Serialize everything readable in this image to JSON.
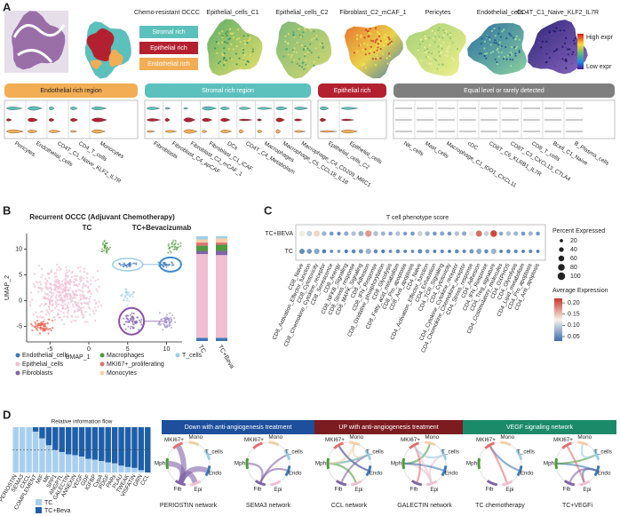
{
  "panel_a": {
    "letter": "A",
    "map_titles": [
      "Chemo-resistant OCCC",
      "Epithelial_cells_C1",
      "Epithelial_cells_C2",
      "Fibroblast_C2_mCAF_1",
      "Pericytes",
      "Endothelial_cells",
      "CD4T_C1_Naive_KLF2_IL7R"
    ],
    "region_legend": [
      {
        "label": "Stromal rich",
        "color": "#5cc0bd"
      },
      {
        "label": "Epithelial rich",
        "color": "#b3202f"
      },
      {
        "label": "Endothelial rich",
        "color": "#f2ad55"
      }
    ],
    "expr_legend": {
      "high": "High expr",
      "low": "Low expr"
    },
    "groups": [
      {
        "label": "Endothelial rich region",
        "color": "#f2ad55",
        "cells": [
          "Pericytes",
          "Endothelial_cells",
          "CD4T_C1_Naive_KLF2_IL7R",
          "CD4_T_cells",
          "Monocytes"
        ]
      },
      {
        "label": "Stromal rich region",
        "color": "#5cc0bd",
        "cells": [
          "Fibroblasts",
          "Fibroblast_C4_apCAF",
          "Fibroblast_C2_mCAF_1",
          "Fibroblast_C1_iCAF",
          "DCs",
          "CD4T_C4_Metabolism",
          "Macrophages",
          "Macrophage_C5_CCL18_IL18",
          "Macrophage_C4_CD209_MRC1"
        ]
      },
      {
        "label": "Epithelial rich",
        "color": "#b3202f",
        "cells": [
          "Epithelial_cells_C2",
          "Epithelial_cells"
        ]
      },
      {
        "label": "Equal level or rarely detected",
        "color": "#7f7f7f",
        "cells": [
          "NK_cells",
          "Mast_cells",
          "Macrophage_C1_IDO1_CXCL11",
          "cDC",
          "CD8T_C6_KLRB1_IL7R",
          "CD8T_C3_CXCL13_CTLA4",
          "CD8_T_cells",
          "Bcell_C1_Naive",
          "B_Plasma_cells"
        ]
      }
    ]
  },
  "panel_b": {
    "letter": "B",
    "title": "Recurrent OCCC (Adjuvant Chemotherapy)",
    "conditions": [
      "TC",
      "TC+Bevacizumab"
    ],
    "x_label": "UMAP_1",
    "y_label": "UMAP_2",
    "xlim": [
      -8,
      12
    ],
    "ylim": [
      -8,
      13
    ],
    "xticks": [
      -5,
      0,
      5,
      10
    ],
    "yticks": [
      -5,
      0,
      5,
      10
    ],
    "bar_labels": [
      "TC",
      "TC+Beva"
    ],
    "cell_types": [
      {
        "name": "Endothelial_cells",
        "color": "#3d78b8",
        "share": [
          3,
          3
        ]
      },
      {
        "name": "Epithelial_cells",
        "color": "#f0bfd2",
        "share": [
          80,
          79
        ]
      },
      {
        "name": "Fibroblasts",
        "color": "#8064a8",
        "share": [
          3,
          4
        ]
      },
      {
        "name": "Macrophages",
        "color": "#4e9a3c",
        "share": [
          5,
          6
        ]
      },
      {
        "name": "MKI67+_proliferating",
        "color": "#e07070",
        "share": [
          3,
          2
        ]
      },
      {
        "name": "Monocytes",
        "color": "#f5cfa8",
        "share": [
          3,
          4
        ]
      },
      {
        "name": "T_cells",
        "color": "#9ccfe6",
        "share": [
          3,
          2
        ]
      }
    ]
  },
  "panel_c": {
    "letter": "C",
    "title": "T cell phenotype score",
    "columns": [
      "CD8_Naive",
      "CD8_Activation_Effector_function",
      "CD8_Cytotoxicity",
      "CD8_Chemokine_Cytokine_receptor",
      "CD8_Senescence",
      "CD8_Anergy",
      "CD8_NFKB_Signaling",
      "CD8_Stress_response",
      "CD8_MAPK_Signaling",
      "CD8_Adhesion",
      "CD8_IFN_Response",
      "CD8_Oxidative_phosphorylation",
      "CD8_Glycolysis",
      "CD8_Fatty_acid_metabolism",
      "CD8_Pro_apoptosis",
      "CD8_Anti_apoptosis",
      "CD4_Naive",
      "CD4_Activation_Effector_function",
      "CD4_Exhaustion",
      "CD4_TCR_Signaling",
      "CD4_Cytotoxicity",
      "CD4_Cytokine_Cytokine_receptor",
      "CD4_Chemokine_Chemokine_receptor",
      "CD4_Stress_response",
      "CD4_Adhesion",
      "CD4_IFN_Response",
      "CD4_Treg_signature",
      "CD4_Costimulatory_molecules",
      "CD4_OXPHOS",
      "CD4_Glycolysis",
      "CD4_Lipid_metabolism",
      "CD4_Pro_apoptosis",
      "CD4_Anti_apoptosis"
    ],
    "rows": [
      {
        "label": "TC+BEVA",
        "percent": [
          60,
          55,
          70,
          40,
          30,
          25,
          35,
          40,
          50,
          75,
          45,
          35,
          30,
          40,
          25,
          30,
          45,
          40,
          30,
          35,
          30,
          40,
          35,
          50,
          70,
          45,
          80,
          30,
          40,
          35,
          30,
          35,
          30
        ],
        "average": [
          0.12,
          0.1,
          0.14,
          0.08,
          0.06,
          0.05,
          0.07,
          0.09,
          0.08,
          0.17,
          0.09,
          0.08,
          0.07,
          0.09,
          0.06,
          0.06,
          0.1,
          0.08,
          0.06,
          0.07,
          0.06,
          0.09,
          0.07,
          0.12,
          0.19,
          0.1,
          0.21,
          0.07,
          0.09,
          0.08,
          0.06,
          0.08,
          0.06
        ]
      },
      {
        "label": "TC",
        "percent": [
          50,
          45,
          55,
          30,
          20,
          20,
          25,
          30,
          35,
          55,
          30,
          25,
          20,
          30,
          20,
          20,
          35,
          30,
          20,
          25,
          20,
          30,
          25,
          35,
          50,
          30,
          55,
          20,
          30,
          25,
          20,
          25,
          20
        ],
        "average": [
          0.05,
          0.06,
          0.07,
          0.04,
          0.05,
          0.06,
          0.04,
          0.05,
          0.06,
          0.08,
          0.05,
          0.04,
          0.05,
          0.05,
          0.04,
          0.05,
          0.05,
          0.06,
          0.04,
          0.05,
          0.04,
          0.05,
          0.05,
          0.06,
          0.07,
          0.05,
          0.08,
          0.04,
          0.05,
          0.05,
          0.04,
          0.05,
          0.04
        ]
      }
    ],
    "size_legend": {
      "title": "Percent Expressed",
      "values": [
        20,
        40,
        60,
        80,
        100
      ]
    },
    "color_legend": {
      "title": "Average Expression",
      "range": [
        0.03,
        0.22
      ],
      "ticks": [
        {
          "value": 0.2,
          "label": "0.20"
        },
        {
          "value": 0.15,
          "label": "0.15"
        },
        {
          "value": 0.1,
          "label": "0.10"
        },
        {
          "value": 0.05,
          "label": "0.05"
        }
      ]
    }
  },
  "panel_d": {
    "letter": "D",
    "title": "Relative information flow",
    "pathways": [
      "PERIOSTIN",
      "SEMA3",
      "CXCL",
      "COMPLEMENT",
      "MIF",
      "MK",
      "SPP1",
      "ANGPTL",
      "GALECTIN",
      "ANNEXIN",
      "VEGF",
      "GDF",
      "IGFBP",
      "CypA",
      "PDGF",
      "PARs",
      "PLAU",
      "TWEAK",
      "VISFATIN",
      "GRN",
      "CCL"
    ],
    "tc_share": [
      1,
      1,
      1,
      0.9,
      0.75,
      0.6,
      0.5,
      0.45,
      0.4,
      0.38,
      0.35,
      0.3,
      0.28,
      0.25,
      0.22,
      0.2,
      0.15,
      0.12,
      0.1,
      0.05,
      0
    ],
    "reference": 0.5,
    "legend": [
      {
        "label": "TC",
        "color": "#a9cfee"
      },
      {
        "label": "TC+Beva",
        "color": "#1f5fa8"
      }
    ],
    "sections": [
      {
        "label": "Down with anti-angiogenesis treatment",
        "color": "#1d4f9c"
      },
      {
        "label": "UP with anti-angiogenesis treatment",
        "color": "#7d1c20"
      },
      {
        "label": "VEGF signaling network",
        "color": "#1b8a69"
      }
    ],
    "networks": [
      "PERIOSTIN network",
      "SEMA3 network",
      "CCL network",
      "GALECTIN network",
      "TC chemotherapy",
      "TC+VEGFi"
    ],
    "node_labels": [
      "MKI67+",
      "Mono",
      "T_cells",
      "Endo",
      "Epi",
      "Fib",
      "Mph"
    ]
  }
}
